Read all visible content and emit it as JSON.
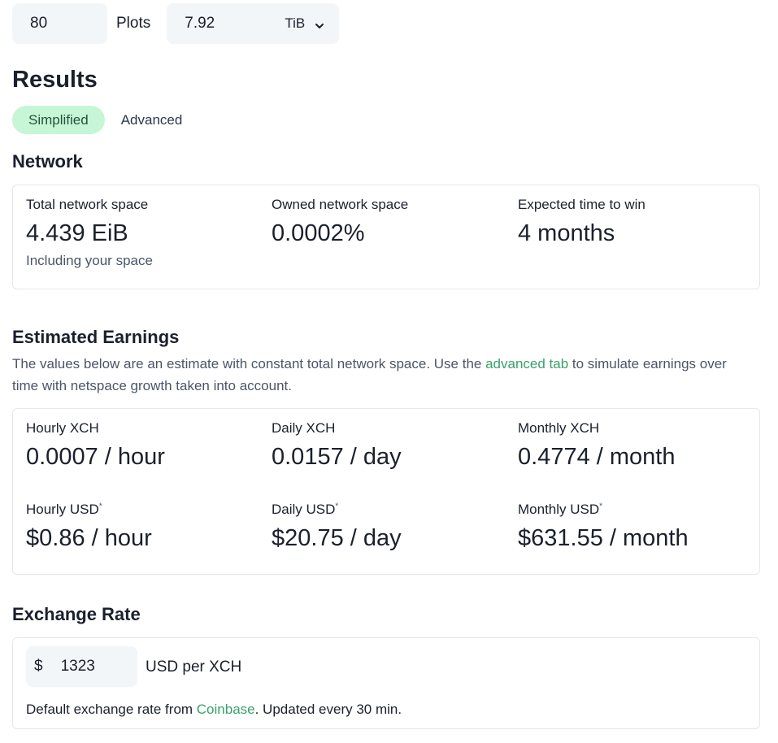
{
  "plots": {
    "count_value": "80",
    "label": "Plots",
    "size_value": "7.92",
    "unit_selected": "TiB"
  },
  "results": {
    "title": "Results",
    "tabs": [
      {
        "label": "Simplified",
        "active": true
      },
      {
        "label": "Advanced",
        "active": false
      }
    ]
  },
  "network": {
    "title": "Network",
    "stats": [
      {
        "label": "Total network space",
        "value": "4.439 EiB",
        "help": "Including your space"
      },
      {
        "label": "Owned network space",
        "value": "0.0002%"
      },
      {
        "label": "Expected time to win",
        "value": "4 months"
      }
    ]
  },
  "earnings": {
    "title": "Estimated Earnings",
    "desc_prefix": "The values below are an estimate with constant total network space. Use the ",
    "desc_link": "advanced tab",
    "desc_suffix": " to simulate earnings over time with netspace growth taken into account.",
    "asterisk": "*",
    "stats": [
      {
        "label": "Hourly XCH",
        "value": "0.0007 / hour"
      },
      {
        "label": "Daily XCH",
        "value": "0.0157 / day"
      },
      {
        "label": "Monthly XCH",
        "value": "0.4774 / month"
      },
      {
        "label": "Hourly USD",
        "value": "$0.86 / hour"
      },
      {
        "label": "Daily USD",
        "value": "$20.75 / day"
      },
      {
        "label": "Monthly USD",
        "value": "$631.55 / month"
      }
    ]
  },
  "exchange": {
    "title": "Exchange Rate",
    "prefix": "$",
    "rate_value": "1323",
    "suffix": "USD per XCH",
    "note_prefix": "Default exchange rate from ",
    "note_link": "Coinbase",
    "note_suffix": ". Updated every 30 min."
  },
  "colors": {
    "accent_green": "#38a169",
    "active_tab_bg": "#c6f6d5",
    "input_bg": "#f3f6f9",
    "border": "#e2e8f0"
  },
  "icons": {
    "unit_dropdown": "chevron-down-icon"
  }
}
